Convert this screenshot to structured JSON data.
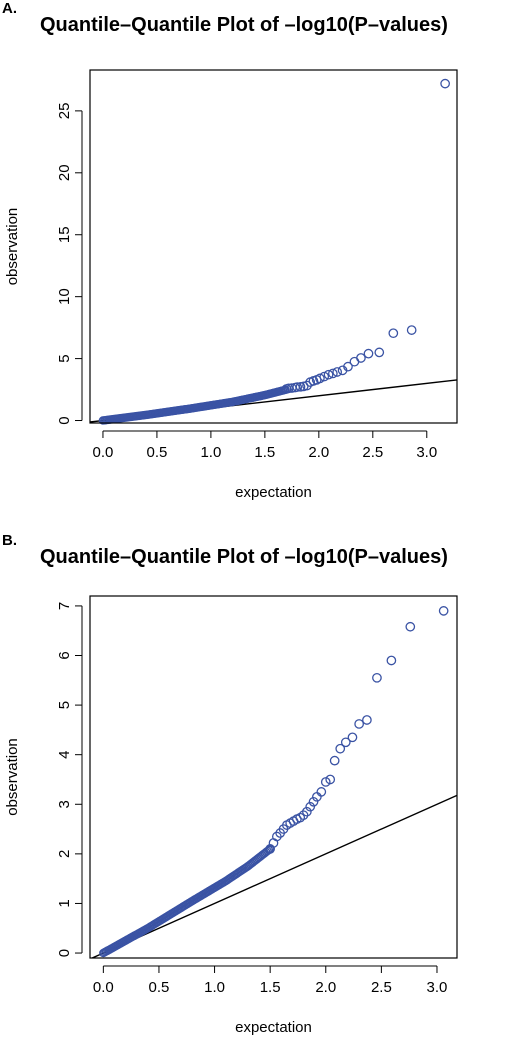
{
  "panels": [
    {
      "label": "A.",
      "title": "Quantile–Quantile Plot of –log10(P–values)"
    },
    {
      "label": "B.",
      "title": "Quantile–Quantile Plot of –log10(P–values)"
    }
  ],
  "chart_data": [
    {
      "type": "scatter",
      "title": "Quantile–Quantile Plot of –log10(P–values)",
      "xlabel": "expectation",
      "ylabel": "observation",
      "xlim": [
        -0.12,
        3.28
      ],
      "ylim": [
        -0.2,
        28.3
      ],
      "xticks": [
        0.0,
        0.5,
        1.0,
        1.5,
        2.0,
        2.5,
        3.0
      ],
      "xtick_labels": [
        "0.0",
        "0.5",
        "1.0",
        "1.5",
        "2.0",
        "2.5",
        "3.0"
      ],
      "yticks": [
        0,
        5,
        10,
        15,
        20,
        25
      ],
      "ytick_labels": [
        "0",
        "5",
        "10",
        "15",
        "20",
        "25"
      ],
      "grid": false,
      "reference_line": {
        "slope": 1,
        "intercept": 0
      },
      "point_color": "#3a53a4",
      "line_color": "#000000",
      "x": [
        1.7,
        1.72,
        1.75,
        1.78,
        1.8,
        1.83,
        1.86,
        1.89,
        1.92,
        1.95,
        1.98,
        2.01,
        2.05,
        2.09,
        2.13,
        2.17,
        2.22,
        2.27,
        2.33,
        2.39,
        2.46,
        2.56,
        2.69,
        2.86,
        3.17
      ],
      "y": [
        2.55,
        2.6,
        2.62,
        2.66,
        2.7,
        2.72,
        2.76,
        2.82,
        3.1,
        3.2,
        3.28,
        3.4,
        3.55,
        3.7,
        3.8,
        3.92,
        4.05,
        4.35,
        4.75,
        5.05,
        5.4,
        5.5,
        7.05,
        7.3,
        27.2
      ],
      "dense_trend": {
        "x": [
          0.0,
          0.4,
          0.8,
          1.2,
          1.5,
          1.7
        ],
        "y": [
          0.0,
          0.45,
          0.95,
          1.5,
          2.05,
          2.5
        ]
      }
    },
    {
      "type": "scatter",
      "title": "Quantile–Quantile Plot of –log10(P–values)",
      "xlabel": "expectation",
      "ylabel": "observation",
      "xlim": [
        -0.12,
        3.18
      ],
      "ylim": [
        -0.1,
        7.2
      ],
      "xticks": [
        0.0,
        0.5,
        1.0,
        1.5,
        2.0,
        2.5,
        3.0
      ],
      "xtick_labels": [
        "0.0",
        "0.5",
        "1.0",
        "1.5",
        "2.0",
        "2.5",
        "3.0"
      ],
      "yticks": [
        0,
        1,
        2,
        3,
        4,
        5,
        6,
        7
      ],
      "ytick_labels": [
        "0",
        "1",
        "2",
        "3",
        "4",
        "5",
        "6",
        "7"
      ],
      "grid": false,
      "reference_line": {
        "slope": 1,
        "intercept": 0
      },
      "point_color": "#3a53a4",
      "line_color": "#000000",
      "x": [
        1.5,
        1.53,
        1.56,
        1.59,
        1.62,
        1.65,
        1.68,
        1.71,
        1.74,
        1.77,
        1.8,
        1.83,
        1.86,
        1.89,
        1.92,
        1.96,
        2.0,
        2.04,
        2.08,
        2.13,
        2.18,
        2.24,
        2.3,
        2.37,
        2.46,
        2.59,
        2.76,
        3.06
      ],
      "y": [
        2.1,
        2.22,
        2.35,
        2.42,
        2.5,
        2.58,
        2.62,
        2.66,
        2.7,
        2.73,
        2.78,
        2.85,
        2.95,
        3.05,
        3.15,
        3.25,
        3.45,
        3.5,
        3.88,
        4.12,
        4.25,
        4.35,
        4.62,
        4.7,
        5.55,
        5.9,
        6.58,
        6.9
      ],
      "dense_trend": {
        "x": [
          0.0,
          0.4,
          0.8,
          1.1,
          1.3,
          1.5
        ],
        "y": [
          0.0,
          0.5,
          1.05,
          1.45,
          1.75,
          2.1
        ]
      }
    }
  ]
}
